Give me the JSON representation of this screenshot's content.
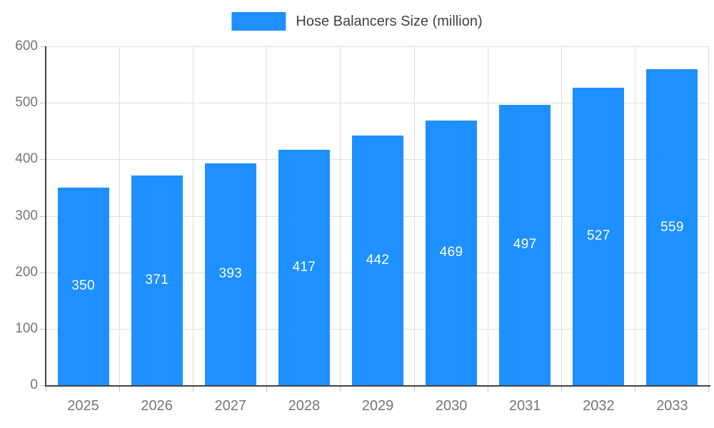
{
  "legend": {
    "label": "Hose Balancers Size (million)"
  },
  "chart_data": {
    "type": "bar",
    "title": "Hose Balancers Size (million)",
    "categories": [
      "2025",
      "2026",
      "2027",
      "2028",
      "2029",
      "2030",
      "2031",
      "2032",
      "2033"
    ],
    "values": [
      350,
      371,
      393,
      417,
      442,
      469,
      497,
      527,
      559
    ],
    "xlabel": "",
    "ylabel": "",
    "ylim": [
      0,
      600
    ],
    "yticks": [
      0,
      100,
      200,
      300,
      400,
      500,
      600
    ],
    "grid": true,
    "legend_position": "top-center",
    "bar_color": "#1e90ff",
    "value_label_color": "#ffffff",
    "axis_color": "#424242",
    "grid_color": "#e0e0e0",
    "tick_mark_color": "#c0c0c0",
    "tick_label_color": "#757575"
  }
}
